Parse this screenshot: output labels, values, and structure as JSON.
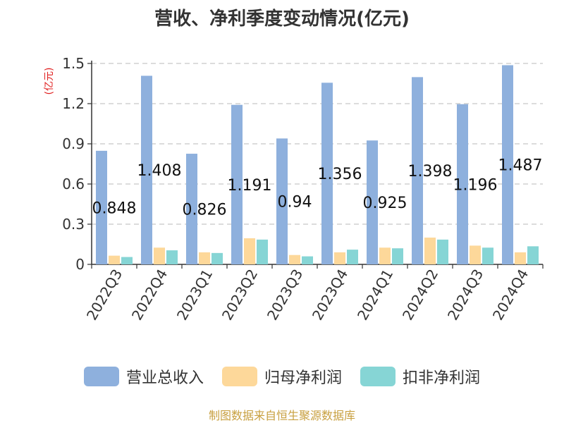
{
  "chart_data": {
    "type": "bar",
    "title": "营收、净利季度变动情况(亿元)",
    "ylabel": "(亿元)",
    "xlabel": "",
    "ylim": [
      0,
      1.5
    ],
    "yticks": [
      "0",
      "0.3",
      "0.6",
      "0.9",
      "1.2",
      "1.5"
    ],
    "grid": true,
    "legend_position": "bottom",
    "categories": [
      "2022Q3",
      "2022Q4",
      "2023Q1",
      "2023Q2",
      "2023Q3",
      "2023Q4",
      "2024Q1",
      "2024Q2",
      "2024Q3",
      "2024Q4"
    ],
    "series": [
      {
        "name": "营业总收入",
        "color": "#8eb0dd",
        "values": [
          0.848,
          1.408,
          0.826,
          1.191,
          0.94,
          1.356,
          0.925,
          1.398,
          1.196,
          1.487
        ],
        "data_labels": [
          "0.848",
          "1.408",
          "0.826",
          "1.191",
          "0.94",
          "1.356",
          "0.925",
          "1.398",
          "1.196",
          "1.487"
        ]
      },
      {
        "name": "归母净利润",
        "color": "#fdd89a",
        "values": [
          0.065,
          0.125,
          0.09,
          0.195,
          0.07,
          0.09,
          0.125,
          0.2,
          0.14,
          0.09
        ]
      },
      {
        "name": "扣非净利润",
        "color": "#86d5d5",
        "values": [
          0.055,
          0.105,
          0.085,
          0.185,
          0.06,
          0.11,
          0.12,
          0.185,
          0.125,
          0.135
        ]
      }
    ]
  },
  "source_note": "制图数据来自恒生聚源数据库"
}
